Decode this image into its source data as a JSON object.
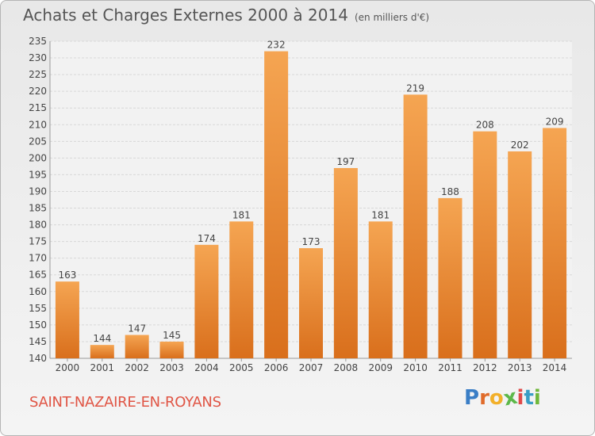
{
  "header": {
    "title": "Achats et Charges Externes 2000 à 2014",
    "unit": "(en milliers d'€)"
  },
  "footer": {
    "commune": "SAINT-NAZAIRE-EN-ROYANS",
    "logo": "Proxiti"
  },
  "colors": {
    "bar_top": "#f5a552",
    "bar_bottom": "#d96f1c",
    "grid": "#d8d8d8",
    "commune": "#e05545"
  },
  "chart_data": {
    "type": "bar",
    "categories": [
      "2000",
      "2001",
      "2002",
      "2003",
      "2004",
      "2005",
      "2006",
      "2007",
      "2008",
      "2009",
      "2010",
      "2011",
      "2012",
      "2013",
      "2014"
    ],
    "values": [
      163,
      144,
      147,
      145,
      174,
      181,
      232,
      173,
      197,
      181,
      219,
      188,
      208,
      202,
      209
    ],
    "title": "Achats et Charges Externes 2000 à 2014",
    "xlabel": "",
    "ylabel": "",
    "ylim": [
      140,
      235
    ],
    "yticks": [
      140,
      145,
      150,
      155,
      160,
      165,
      170,
      175,
      180,
      185,
      190,
      195,
      200,
      205,
      210,
      215,
      220,
      225,
      230,
      235
    ],
    "grid": true,
    "data_labels": true
  }
}
